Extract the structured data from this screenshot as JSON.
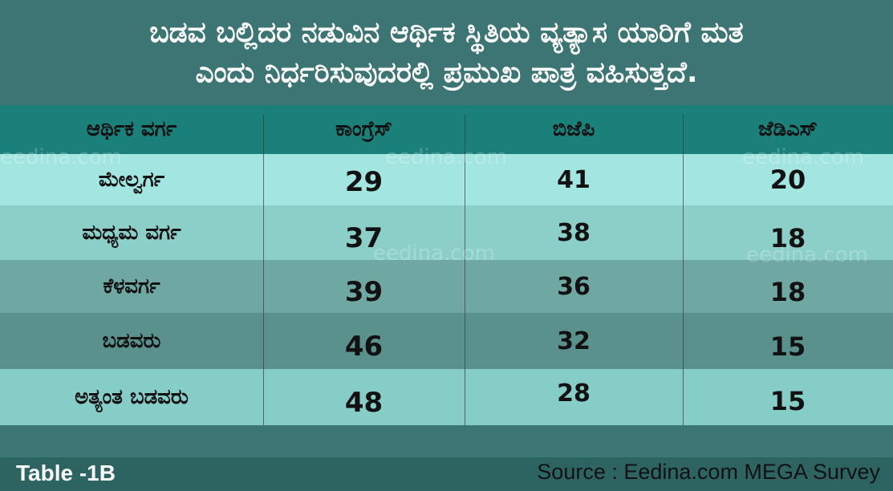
{
  "title": {
    "line1": "ಬಡವ ಬಲ್ಲಿದರ ನಡುವಿನ ಆರ್ಥಿಕ ಸ್ಥಿತಿಯ ವ್ಯತ್ಯಾಸ ಯಾರಿಗೆ ಮತ",
    "line2": "ಎಂದು ನಿರ್ಧರಿಸುವುದರಲ್ಲಿ ಪ್ರಮುಖ ಪಾತ್ರ ವಹಿಸುತ್ತದೆ."
  },
  "colors": {
    "title_bg": "#3d7574",
    "header_bg": "#1b7f7a",
    "row_bgs": [
      "#a3e6e1",
      "#8ccfc9",
      "#6fa8a3",
      "#5a918c",
      "#86cdc7"
    ],
    "footer_bg": "#2d6461"
  },
  "watermark": "eedina.com",
  "chart_data": {
    "type": "table",
    "columns": [
      "ಆರ್ಥಿಕ ವರ್ಗ",
      "ಕಾಂಗ್ರೆಸ್",
      "ಬಿಜೆಪಿ",
      "ಜೆಡಿಎಸ್"
    ],
    "rows": [
      [
        "ಮೇಲ್ವರ್ಗ",
        "29",
        "41",
        "20"
      ],
      [
        "ಮಧ್ಯಮ ವರ್ಗ",
        "37",
        "38",
        "18"
      ],
      [
        "ಕೆಳವರ್ಗ",
        "39",
        "36",
        "18"
      ],
      [
        "ಬಡವರು",
        "46",
        "32",
        "15"
      ],
      [
        "ಅತ್ಯಂತ ಬಡವರು",
        "48",
        "28",
        "15"
      ]
    ]
  },
  "footer": {
    "table_id": "Table -1B",
    "source": "Source : Eedina.com MEGA Survey"
  }
}
